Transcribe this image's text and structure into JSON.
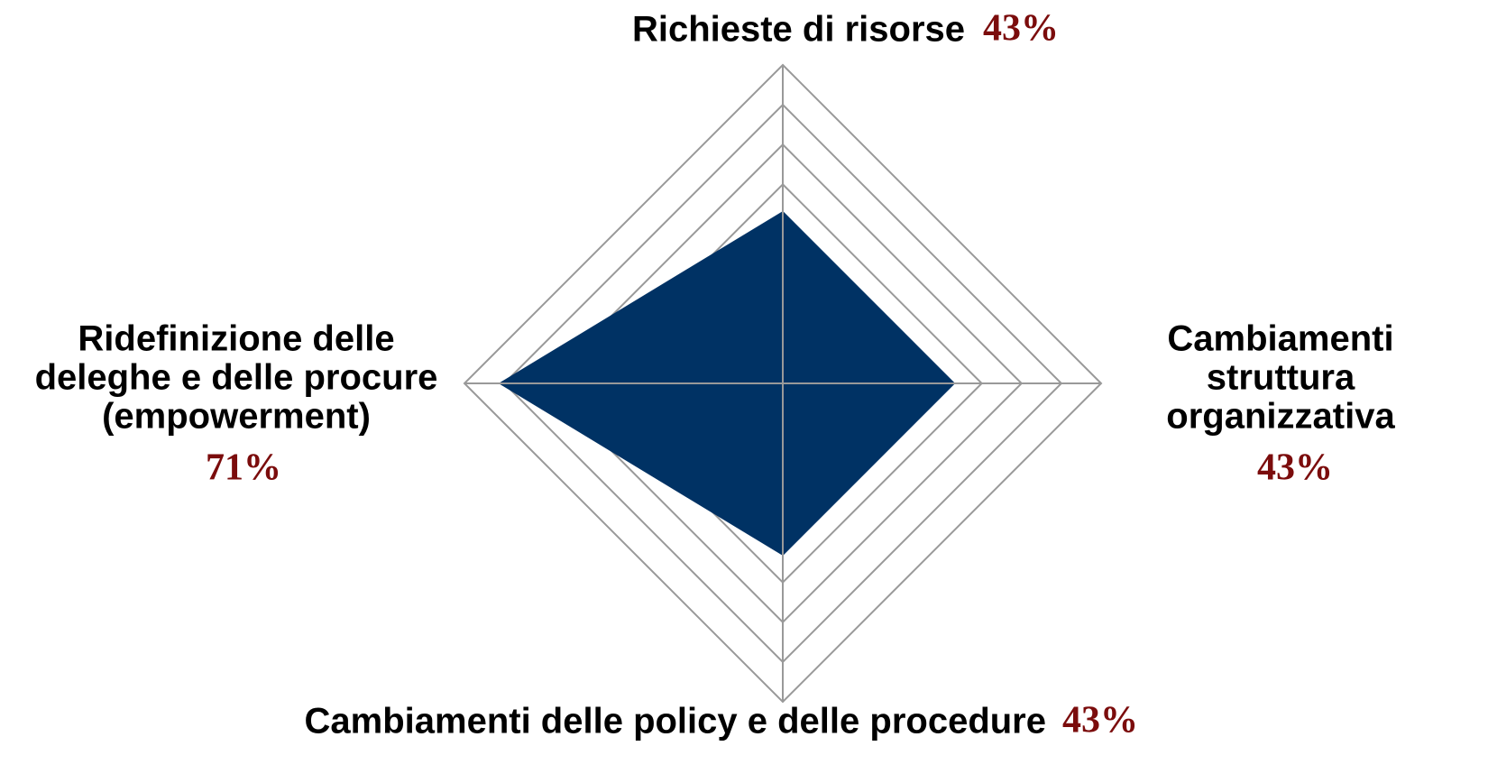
{
  "chart_data": {
    "type": "radar",
    "categories": [
      [
        "Richieste di risorse"
      ],
      [
        "Cambiamenti",
        "struttura",
        "organizzativa"
      ],
      [
        "Cambiamenti delle policy e delle procedure"
      ],
      [
        "Ridefinizione delle",
        "deleghe e delle procure",
        "(empowerment)"
      ]
    ],
    "series": [
      {
        "color": "#003264",
        "values": [
          43,
          43,
          43,
          71
        ],
        "value_labels": [
          "43%",
          "43%",
          "43%",
          "71%"
        ]
      }
    ],
    "ylim": [
      0,
      80
    ],
    "yticks": [
      0,
      10,
      20,
      30,
      40,
      50,
      60,
      70,
      80
    ],
    "grid": true
  }
}
